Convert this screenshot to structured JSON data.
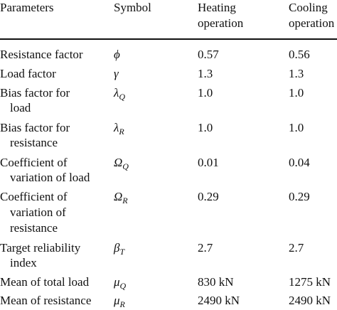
{
  "headers": {
    "parameters": "Parameters",
    "symbol": "Symbol",
    "heating_line1": "Heating",
    "heating_line2": "operation",
    "cooling_line1": "Cooling",
    "cooling_line2": "operation"
  },
  "rows": [
    {
      "param": [
        "Resistance factor"
      ],
      "sym": "ϕ",
      "sub": "",
      "heating": "0.57",
      "cooling": "0.56"
    },
    {
      "param": [
        "Load factor"
      ],
      "sym": "γ",
      "sub": "",
      "heating": "1.3",
      "cooling": "1.3"
    },
    {
      "param": [
        "Bias factor for",
        "load"
      ],
      "sym": "λ",
      "sub": "Q",
      "heating": "1.0",
      "cooling": "1.0"
    },
    {
      "param": [
        "Bias factor for",
        "resistance"
      ],
      "sym": "λ",
      "sub": "R",
      "heating": "1.0",
      "cooling": "1.0"
    },
    {
      "param": [
        "Coefficient of",
        "variation of load"
      ],
      "sym": "Ω",
      "sub": "Q",
      "heating": "0.01",
      "cooling": "0.04"
    },
    {
      "param": [
        "Coefficient of",
        "variation of",
        "resistance"
      ],
      "sym": "Ω",
      "sub": "R",
      "heating": "0.29",
      "cooling": "0.29"
    },
    {
      "param": [
        "Target reliability",
        "index"
      ],
      "sym": "β",
      "sub": "T",
      "heating": "2.7",
      "cooling": "2.7"
    },
    {
      "param": [
        "Mean of total load"
      ],
      "sym": "μ",
      "sub": "Q",
      "heating": "830 kN",
      "cooling": "1275 kN"
    },
    {
      "param": [
        "Mean of resistance"
      ],
      "sym": "μ",
      "sub": "R",
      "heating": "2490 kN",
      "cooling": "2490 kN"
    }
  ]
}
